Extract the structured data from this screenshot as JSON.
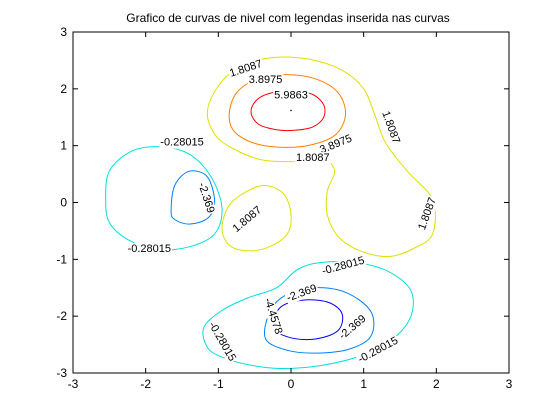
{
  "chart_data": {
    "type": "contour",
    "title": "Grafico de curvas de nivel com legendas inserida nas curvas",
    "xlabel": "",
    "ylabel": "",
    "xlim": [
      -3,
      3
    ],
    "ylim": [
      -3,
      3
    ],
    "xticks": [
      -3,
      -2,
      -1,
      0,
      1,
      2,
      3
    ],
    "yticks": [
      -3,
      -2,
      -1,
      0,
      1,
      2,
      3
    ],
    "grid": false,
    "levels": [
      {
        "value": 5.9863,
        "color": "#ff0000",
        "curves": [
          [
            [
              -0.55,
              1.6
            ],
            [
              -0.45,
              1.83
            ],
            [
              -0.2,
              1.95
            ],
            [
              0.05,
              1.96
            ],
            [
              0.3,
              1.9
            ],
            [
              0.45,
              1.72
            ],
            [
              0.45,
              1.5
            ],
            [
              0.3,
              1.33
            ],
            [
              0.05,
              1.27
            ],
            [
              -0.2,
              1.28
            ],
            [
              -0.45,
              1.38
            ],
            [
              -0.55,
              1.6
            ]
          ]
        ]
      },
      {
        "value": 3.8975,
        "color": "#ff8000",
        "curves": [
          [
            [
              -0.85,
              1.55
            ],
            [
              -0.75,
              1.93
            ],
            [
              -0.45,
              2.18
            ],
            [
              -0.05,
              2.25
            ],
            [
              0.35,
              2.17
            ],
            [
              0.65,
              1.93
            ],
            [
              0.75,
              1.55
            ],
            [
              0.62,
              1.2
            ],
            [
              0.3,
              1.02
            ],
            [
              -0.1,
              0.97
            ],
            [
              -0.5,
              1.04
            ],
            [
              -0.78,
              1.25
            ],
            [
              -0.85,
              1.55
            ]
          ]
        ]
      },
      {
        "value": 1.8087,
        "color": "#e0e000",
        "curves": [
          [
            [
              -1.15,
              1.6
            ],
            [
              -1.0,
              2.05
            ],
            [
              -0.7,
              2.4
            ],
            [
              -0.25,
              2.55
            ],
            [
              0.25,
              2.52
            ],
            [
              0.7,
              2.33
            ],
            [
              1.0,
              2.0
            ],
            [
              1.15,
              1.55
            ],
            [
              1.3,
              1.05
            ],
            [
              1.6,
              0.55
            ],
            [
              1.95,
              0.05
            ],
            [
              1.95,
              -0.55
            ],
            [
              1.7,
              -0.8
            ],
            [
              1.35,
              -0.95
            ],
            [
              0.95,
              -0.85
            ],
            [
              0.65,
              -0.6
            ],
            [
              0.5,
              -0.22
            ],
            [
              0.5,
              0.2
            ],
            [
              0.6,
              0.55
            ],
            [
              0.45,
              0.75
            ],
            [
              0.05,
              0.72
            ],
            [
              -0.4,
              0.75
            ],
            [
              -0.8,
              0.95
            ],
            [
              -1.05,
              1.2
            ],
            [
              -1.15,
              1.6
            ]
          ],
          [
            [
              -0.85,
              -0.75
            ],
            [
              -0.95,
              -0.45
            ],
            [
              -0.85,
              -0.05
            ],
            [
              -0.6,
              0.2
            ],
            [
              -0.35,
              0.3
            ],
            [
              -0.1,
              0.15
            ],
            [
              0.0,
              -0.2
            ],
            [
              -0.05,
              -0.55
            ],
            [
              -0.3,
              -0.78
            ],
            [
              -0.6,
              -0.85
            ],
            [
              -0.85,
              -0.75
            ]
          ]
        ]
      },
      {
        "value": -0.28015,
        "color": "#00e0e0",
        "curves": [
          [
            [
              -2.55,
              0.05
            ],
            [
              -2.5,
              0.55
            ],
            [
              -2.2,
              0.9
            ],
            [
              -1.8,
              0.98
            ],
            [
              -1.4,
              0.85
            ],
            [
              -1.1,
              0.45
            ],
            [
              -0.95,
              -0.1
            ],
            [
              -1.05,
              -0.55
            ],
            [
              -1.4,
              -0.78
            ],
            [
              -1.85,
              -0.83
            ],
            [
              -2.25,
              -0.65
            ],
            [
              -2.5,
              -0.35
            ],
            [
              -2.55,
              0.05
            ]
          ],
          [
            [
              -1.15,
              -2.55
            ],
            [
              -1.2,
              -2.2
            ],
            [
              -0.95,
              -1.9
            ],
            [
              -0.6,
              -1.68
            ],
            [
              -0.2,
              -1.5
            ],
            [
              0.1,
              -1.17
            ],
            [
              0.45,
              -1.05
            ],
            [
              0.95,
              -1.07
            ],
            [
              1.35,
              -1.22
            ],
            [
              1.65,
              -1.55
            ],
            [
              1.65,
              -2.0
            ],
            [
              1.4,
              -2.4
            ],
            [
              0.95,
              -2.7
            ],
            [
              0.4,
              -2.87
            ],
            [
              -0.15,
              -2.92
            ],
            [
              -0.6,
              -2.85
            ],
            [
              -0.95,
              -2.72
            ],
            [
              -1.15,
              -2.55
            ]
          ]
        ]
      },
      {
        "value": -2.369,
        "color": "#0080ff",
        "curves": [
          [
            [
              -1.65,
              -0.15
            ],
            [
              -1.6,
              0.3
            ],
            [
              -1.4,
              0.55
            ],
            [
              -1.15,
              0.45
            ],
            [
              -1.05,
              0.0
            ],
            [
              -1.15,
              -0.28
            ],
            [
              -1.4,
              -0.38
            ],
            [
              -1.6,
              -0.3
            ],
            [
              -1.65,
              -0.15
            ]
          ],
          [
            [
              -0.35,
              -2.4
            ],
            [
              -0.3,
              -1.95
            ],
            [
              -0.1,
              -1.65
            ],
            [
              0.3,
              -1.5
            ],
            [
              0.75,
              -1.58
            ],
            [
              1.1,
              -1.92
            ],
            [
              1.1,
              -2.35
            ],
            [
              0.8,
              -2.58
            ],
            [
              0.35,
              -2.65
            ],
            [
              -0.05,
              -2.6
            ],
            [
              -0.35,
              -2.4
            ]
          ]
        ]
      },
      {
        "value": -4.4578,
        "color": "#0000ff",
        "curves": [
          [
            [
              -0.25,
              -2.2
            ],
            [
              -0.15,
              -1.85
            ],
            [
              0.15,
              -1.72
            ],
            [
              0.5,
              -1.75
            ],
            [
              0.7,
              -1.95
            ],
            [
              0.65,
              -2.25
            ],
            [
              0.35,
              -2.4
            ],
            [
              0.0,
              -2.38
            ],
            [
              -0.25,
              -2.2
            ]
          ]
        ]
      }
    ],
    "points": [
      [
        0.0,
        1.62
      ],
      [
        0.28,
        -1.62
      ]
    ],
    "labels": [
      {
        "text": "5.9863",
        "x": 0.0,
        "y": 1.88,
        "angle": 0
      },
      {
        "text": "3.8975",
        "x": -0.35,
        "y": 2.15,
        "angle": 0
      },
      {
        "text": "3.8975",
        "x": 0.62,
        "y": 1.02,
        "angle": -22
      },
      {
        "text": "1.8087",
        "x": -0.62,
        "y": 2.35,
        "angle": -18
      },
      {
        "text": "1.8087",
        "x": 1.37,
        "y": 1.32,
        "angle": 70
      },
      {
        "text": "1.8087",
        "x": 0.3,
        "y": 0.78,
        "angle": 0
      },
      {
        "text": "1.8087",
        "x": 1.88,
        "y": -0.2,
        "angle": -70
      },
      {
        "text": "1.8087",
        "x": -0.6,
        "y": -0.3,
        "angle": -40
      },
      {
        "text": "-0.28015",
        "x": -1.5,
        "y": 1.05,
        "angle": 0
      },
      {
        "text": "-0.28015",
        "x": -1.95,
        "y": -0.82,
        "angle": 0
      },
      {
        "text": "-0.28015",
        "x": 0.72,
        "y": -1.12,
        "angle": -15
      },
      {
        "text": "-0.28015",
        "x": -0.95,
        "y": -2.45,
        "angle": 60
      },
      {
        "text": "-0.28015",
        "x": 1.2,
        "y": -2.6,
        "angle": -28
      },
      {
        "text": "-2.369",
        "x": -1.17,
        "y": 0.08,
        "angle": 72
      },
      {
        "text": "-2.369",
        "x": 0.15,
        "y": -1.6,
        "angle": -20
      },
      {
        "text": "-2.369",
        "x": 0.85,
        "y": -2.2,
        "angle": -40
      },
      {
        "text": "-4.4578",
        "x": -0.25,
        "y": -2.0,
        "angle": 72
      }
    ]
  }
}
